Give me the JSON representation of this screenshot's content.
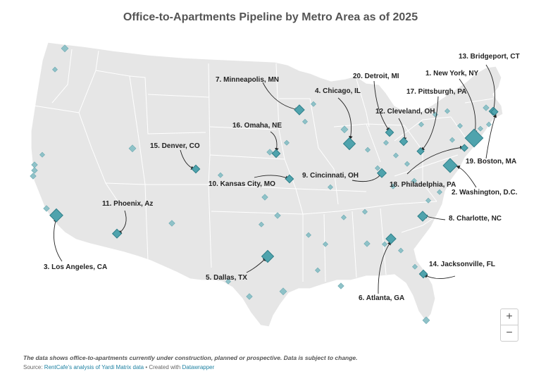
{
  "title": "Office-to-Apartments Pipeline by Metro Area as of 2025",
  "note": "The data shows office-to-apartments currently under construction, planned or prospective. Data is subject to change.",
  "source": {
    "prefix": "Source: ",
    "link": "RentCafe's analysis of Yardi Matrix data",
    "created": " • Created with ",
    "tool": "Datawrapper"
  },
  "zoom": {
    "in": "+",
    "out": "−"
  },
  "colors": {
    "marker_fill": "#4fa3ad",
    "marker_stroke": "#2f7f89",
    "land": "#e6e6e6",
    "border": "#ffffff"
  },
  "metros": [
    {
      "rank": 1,
      "label": "1. New York, NY"
    },
    {
      "rank": 2,
      "label": "2. Washington, D.C."
    },
    {
      "rank": 3,
      "label": "3. Los Angeles, CA"
    },
    {
      "rank": 4,
      "label": "4. Chicago, IL"
    },
    {
      "rank": 5,
      "label": "5. Dallas, TX"
    },
    {
      "rank": 6,
      "label": "6. Atlanta, GA"
    },
    {
      "rank": 7,
      "label": "7. Minneapolis, MN"
    },
    {
      "rank": 8,
      "label": "8. Charlotte, NC"
    },
    {
      "rank": 9,
      "label": "9. Cincinnati, OH"
    },
    {
      "rank": 10,
      "label": "10. Kansas City, MO"
    },
    {
      "rank": 11,
      "label": "11. Phoenix, Az"
    },
    {
      "rank": 12,
      "label": "12. Cleveland, OH"
    },
    {
      "rank": 13,
      "label": "13. Bridgeport, CT"
    },
    {
      "rank": 14,
      "label": "14. Jacksonville, FL"
    },
    {
      "rank": 15,
      "label": "15. Denver, CO"
    },
    {
      "rank": 16,
      "label": "16. Omaha, NE"
    },
    {
      "rank": 17,
      "label": "17. Pittsburgh, PA"
    },
    {
      "rank": 18,
      "label": "18. Philadelphia, PA"
    },
    {
      "rank": 19,
      "label": "19. Boston, MA"
    },
    {
      "rank": 20,
      "label": "20. Detroit, MI"
    }
  ]
}
